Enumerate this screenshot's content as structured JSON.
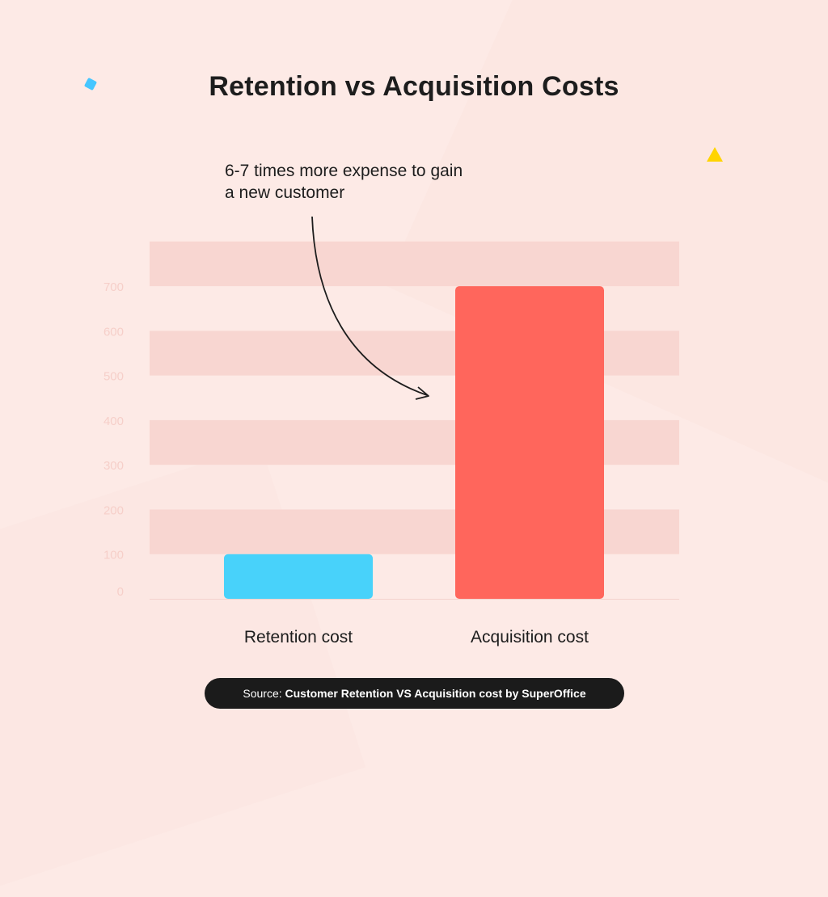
{
  "title": "Retention vs Acquisition Costs",
  "annotation": {
    "line1": "6-7 times more expense to gain",
    "line2": "a new customer"
  },
  "source": {
    "prefix": "Source: ",
    "text": "Customer Retention VS Acquisition cost by SuperOffice"
  },
  "colors": {
    "retention": "#48d2fa",
    "acquisition": "#ff665c",
    "band": "#f8d6d1",
    "tick": "#f6cfc9",
    "deco_square": "#46c6ff",
    "deco_triangle": "#ffd400"
  },
  "chart_data": {
    "type": "bar",
    "title": "Retention vs Acquisition Costs",
    "categories": [
      "Retention cost",
      "Acquisition cost"
    ],
    "values": [
      100,
      700
    ],
    "yticks": [
      0,
      100,
      200,
      300,
      400,
      500,
      600,
      700
    ],
    "ylim": [
      0,
      800
    ],
    "grid": "alternating horizontal bands",
    "legend": "none"
  }
}
